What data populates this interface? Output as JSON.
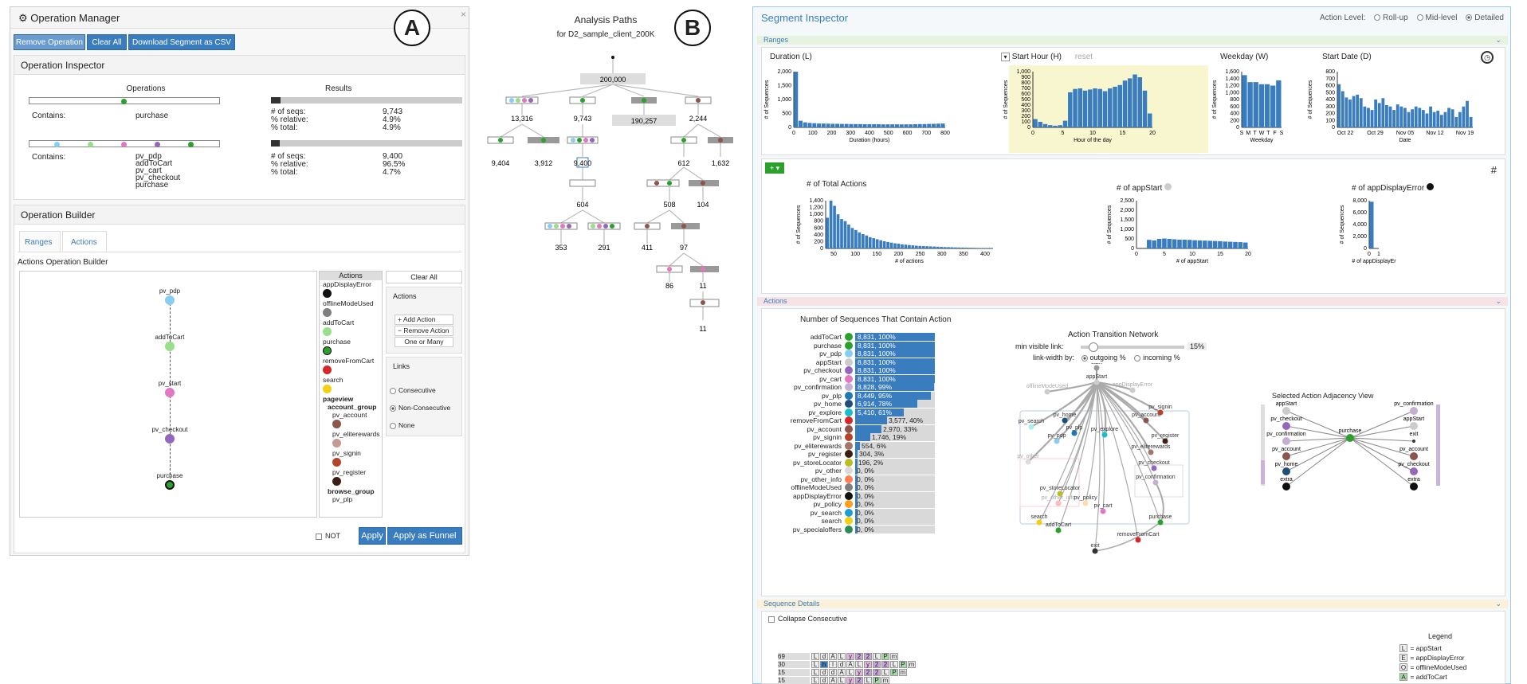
{
  "labels": {
    "a": "A",
    "b": "B",
    "c": "C"
  },
  "op_manager": {
    "title": "Operation Manager",
    "close": "×",
    "buttons": [
      "Remove Operation",
      "Clear All",
      "Download Segment as CSV"
    ],
    "inspector": {
      "title": "Operation Inspector",
      "col_operations": "Operations",
      "col_results": "Results",
      "op1": {
        "contains_label": "Contains:",
        "actions": "purchase",
        "stats_labels": [
          "# of seqs:",
          "% relative:",
          "% total:"
        ],
        "stats_values": [
          "9,743",
          "4.9%",
          "4.9%"
        ],
        "progress": 0.049
      },
      "op2": {
        "contains_label": "Contains:",
        "actions": [
          "pv_pdp",
          "addToCart",
          "pv_cart",
          "pv_checkout",
          "purchase"
        ],
        "stats_labels": [
          "# of seqs:",
          "% relative:",
          "% total:"
        ],
        "stats_values": [
          "9,400",
          "96.5%",
          "4.7%"
        ],
        "progress": 0.047
      }
    },
    "builder": {
      "title": "Operation Builder",
      "tabs": [
        "Ranges",
        "Actions"
      ],
      "subtitle": "Actions Operation Builder",
      "flow_nodes": [
        "pv_pdp",
        "addToCart",
        "pv_start",
        "pv_checkout",
        "purchase"
      ],
      "actions_header": "Actions",
      "actions_list": [
        "appDisplayError",
        "offlineModeUsed",
        "addToCart",
        "purchase",
        "removeFromCart",
        "search"
      ],
      "pageview_label": "pageview",
      "account_group": "account_group",
      "account_items": [
        "pv_account",
        "pv_eliterewards",
        "pv_signin",
        "pv_register"
      ],
      "browse_group": "browse_group",
      "browse_items": [
        "pv_plp"
      ],
      "clear_all": "Clear All",
      "actions_box": "Actions",
      "add_action": "Add Action",
      "remove_action": "Remove Action",
      "one_or_many": "One or Many",
      "links_title": "Links",
      "links": [
        "Consecutive",
        "Non-Consecutive",
        "None"
      ],
      "not_label": "NOT",
      "apply": "Apply",
      "apply_funnel": "Apply as Funnel"
    }
  },
  "analysis": {
    "title": "Analysis Paths",
    "subtitle": "for D2_sample_client_200K",
    "counts": [
      "200,000",
      "13,316",
      "9,743",
      "190,257",
      "2,244",
      "9,404",
      "3,912",
      "9,400",
      "612",
      "1,632",
      "604",
      "508",
      "104",
      "353",
      "291",
      "411",
      "97",
      "86",
      "11",
      "11"
    ]
  },
  "segment": {
    "title": "Segment Inspector",
    "action_level_label": "Action Level:",
    "levels": [
      "Roll-up",
      "Mid-level",
      "Detailed"
    ],
    "sections": {
      "ranges": "Ranges",
      "actions": "Actions",
      "details": "Sequence Details"
    },
    "ranges": {
      "duration": {
        "title": "Duration (L)",
        "xlabel": "Duration (hours)",
        "ylabel": "# of Sequences",
        "yticks": [
          "2,000",
          "1,500",
          "1,000",
          "500",
          "0"
        ],
        "xticks": [
          "0",
          "100",
          "200",
          "300",
          "400",
          "500",
          "600",
          "700",
          "800"
        ]
      },
      "hour": {
        "title": "Start Hour (H)",
        "reset": "reset",
        "xlabel": "Hour of the day",
        "ylabel": "# of Sequences",
        "yticks": [
          "1,000",
          "900",
          "800",
          "700",
          "600",
          "500",
          "400",
          "300",
          "200",
          "100",
          "0"
        ],
        "xticks": [
          "0",
          "5",
          "10",
          "15",
          "20"
        ]
      },
      "weekday": {
        "title": "Weekday (W)",
        "xlabel": "Weekday",
        "ylabel": "# of Sequences",
        "yticks": [
          "1,600",
          "1,400",
          "1,200",
          "1,000",
          "800",
          "600",
          "400",
          "200",
          "0"
        ],
        "xticks": "SMTWTFS"
      },
      "startdate": {
        "title": "Start Date (D)",
        "xlabel": "Date",
        "ylabel": "# of Sequences",
        "yticks": [
          "800",
          "700",
          "600",
          "500",
          "400",
          "300",
          "200",
          "100",
          "0"
        ],
        "xticks": [
          "Oct 22",
          "Oct 29",
          "Nov 05",
          "Nov 12",
          "Nov 19"
        ]
      }
    },
    "counts": {
      "total": {
        "title": "# of Total Actions",
        "xlabel": "# of actions",
        "ylabel": "# of Sequences",
        "yticks": [
          "1,400",
          "1,200",
          "1,000",
          "800",
          "600",
          "400",
          "200",
          "0"
        ],
        "xticks": [
          "50",
          "100",
          "150",
          "200",
          "250",
          "300",
          "350",
          "400"
        ]
      },
      "appstart": {
        "title": "# of appStart",
        "xlabel": "# of appStart",
        "ylabel": "# of Sequences",
        "yticks": [
          "2,500",
          "2,000",
          "1,500",
          "1,000",
          "500",
          "0"
        ],
        "xticks": [
          "0",
          "5",
          "10",
          "15",
          "20"
        ]
      },
      "apperror": {
        "title": "# of appDisplayError",
        "xlabel": "# of appDisplayEr",
        "ylabel": "# of Sequences",
        "yticks": [
          "8,000",
          "6,000",
          "4,000",
          "2,000",
          "0"
        ],
        "xticks": [
          "0",
          "1"
        ]
      },
      "add": "+ ▾",
      "hash": "#"
    },
    "actions_chart": {
      "title": "Number of Sequences That Contain Action",
      "rows": [
        {
          "name": "addToCart",
          "color": "#2ca02c",
          "label": "8,831, 100%",
          "frac": 1.0
        },
        {
          "name": "purchase",
          "color": "#2ca02c",
          "label": "8,831, 100%",
          "frac": 1.0
        },
        {
          "name": "pv_pdp",
          "color": "#87cef0",
          "label": "8,831, 100%",
          "frac": 1.0
        },
        {
          "name": "appStart",
          "color": "#cccccc",
          "label": "8,831, 100%",
          "frac": 1.0
        },
        {
          "name": "pv_checkout",
          "color": "#9467bd",
          "label": "8,831, 100%",
          "frac": 1.0
        },
        {
          "name": "pv_cart",
          "color": "#e377c2",
          "label": "8,831, 100%",
          "frac": 1.0
        },
        {
          "name": "pv_confirmation",
          "color": "#c5b0d5",
          "label": "8,828, 99%",
          "frac": 0.99
        },
        {
          "name": "pv_plp",
          "color": "#1f77b4",
          "label": "8,449, 95%",
          "frac": 0.95
        },
        {
          "name": "pv_home",
          "color": "#1f4e79",
          "label": "6,914, 78%",
          "frac": 0.78
        },
        {
          "name": "pv_explore",
          "color": "#17becf",
          "label": "5,410, 61%",
          "frac": 0.61
        },
        {
          "name": "removeFromCart",
          "color": "#d62728",
          "label": "3,577, 40%",
          "frac": 0.4
        },
        {
          "name": "pv_account",
          "color": "#8c564b",
          "label": "2,970, 33%",
          "frac": 0.33
        },
        {
          "name": "pv_signin",
          "color": "#b5452a",
          "label": "1,746, 19%",
          "frac": 0.19
        },
        {
          "name": "pv_eliterewards",
          "color": "#a0786a",
          "label": "554, 6%",
          "frac": 0.06
        },
        {
          "name": "pv_register",
          "color": "#3b1f14",
          "label": "304, 3%",
          "frac": 0.03
        },
        {
          "name": "pv_storeLocator",
          "color": "#bcbd22",
          "label": "196, 2%",
          "frac": 0.02
        },
        {
          "name": "pv_other",
          "color": "#d9d9d9",
          "label": "0, 0%",
          "frac": 0
        },
        {
          "name": "pv_other_info",
          "color": "#ff7f50",
          "label": "0, 0%",
          "frac": 0
        },
        {
          "name": "offlineModeUsed",
          "color": "#7f7f7f",
          "label": "0, 0%",
          "frac": 0
        },
        {
          "name": "appDisplayError",
          "color": "#111111",
          "label": "0, 0%",
          "frac": 0
        },
        {
          "name": "pv_policy",
          "color": "#ff9f1c",
          "label": "0, 0%",
          "frac": 0
        },
        {
          "name": "pv_search",
          "color": "#1f9ed1",
          "label": "0, 0%",
          "frac": 0
        },
        {
          "name": "search",
          "color": "#f2d013",
          "label": "0, 0%",
          "frac": 0
        },
        {
          "name": "pv_specialoffers",
          "color": "#2e8b57",
          "label": "0, 0%",
          "frac": 0
        }
      ]
    },
    "network": {
      "title": "Action Transition Network",
      "min_link": "min visible link:",
      "min_value": "15%",
      "width_by": "link-width by:",
      "outgoing": "outgoing %",
      "incoming": "incoming %",
      "nodes": [
        "start",
        "appStart",
        "offlineModeUsed",
        "appDisplayError",
        "pv_search",
        "pv_home",
        "pv_account",
        "pv_signin",
        "pv_pdp",
        "pv_plp",
        "pv_explore",
        "pv_register",
        "pv_eliterewards",
        "pv_other",
        "pv_checkout",
        "pv_storeLocator",
        "pv_confirmation",
        "pv_other_info",
        "pv_policy",
        "pv_cart",
        "search",
        "purchase",
        "addToCart",
        "removeFromCart",
        "exit"
      ]
    },
    "adjacency": {
      "title": "Selected Action Adjacency View",
      "left": [
        "appStart",
        "pv_checkout",
        "pv_confirmation",
        "pv_account",
        "pv_home",
        "extra"
      ],
      "center": "purchase",
      "right": [
        "pv_confirmation",
        "appStart",
        "exit",
        "pv_account",
        "pv_checkout",
        "extra"
      ]
    },
    "details": {
      "collapse": "Collapse Consecutive",
      "rows": [
        {
          "count": "69",
          "seq": "LdALy22LPm"
        },
        {
          "count": "30",
          "seq": "LhldALy22LPm"
        },
        {
          "count": "15",
          "seq": "LddALy22LPm"
        },
        {
          "count": "15",
          "seq": "LdALy2LPm"
        }
      ],
      "legend_title": "Legend",
      "legend": [
        {
          "key": "L",
          "text": "= appStart"
        },
        {
          "key": "E",
          "text": "= appDisplayError"
        },
        {
          "key": "O",
          "text": "= offlineModeUsed"
        },
        {
          "key": "A",
          "text": "= addToCart"
        }
      ]
    },
    "chart_data": [
      {
        "type": "bar",
        "title": "Duration (L)",
        "xlabel": "Duration (hours)",
        "ylabel": "# of Sequences",
        "ylim": [
          0,
          2000
        ],
        "x": [
          0,
          25,
          50,
          75,
          100,
          125,
          150,
          175,
          200,
          225,
          250,
          275,
          300,
          325,
          350,
          375,
          400,
          425,
          450,
          475,
          500,
          525,
          550,
          575,
          600,
          625,
          650,
          675,
          700,
          725,
          750,
          775,
          800
        ],
        "values": [
          2000,
          240,
          180,
          160,
          150,
          140,
          140,
          135,
          130,
          130,
          125,
          125,
          120,
          120,
          120,
          115,
          115,
          115,
          115,
          110,
          110,
          110,
          110,
          110,
          110,
          110,
          115,
          120,
          120,
          125,
          130,
          135,
          140
        ]
      },
      {
        "type": "bar",
        "title": "Start Hour (H)",
        "xlabel": "Hour of the day",
        "ylabel": "# of Sequences",
        "ylim": [
          0,
          1000
        ],
        "x": [
          0,
          1,
          2,
          3,
          4,
          5,
          6,
          7,
          8,
          9,
          10,
          11,
          12,
          13,
          14,
          15,
          16,
          17,
          18,
          19,
          20,
          21,
          22,
          23
        ],
        "values": [
          150,
          100,
          60,
          40,
          30,
          40,
          120,
          630,
          690,
          700,
          660,
          680,
          700,
          690,
          650,
          700,
          730,
          760,
          840,
          880,
          950,
          900,
          660,
          250
        ]
      },
      {
        "type": "bar",
        "title": "Weekday (W)",
        "xlabel": "Weekday",
        "ylabel": "# of Sequences",
        "ylim": [
          0,
          1600
        ],
        "categories": [
          "S",
          "M",
          "T",
          "W",
          "T",
          "F",
          "S"
        ],
        "values": [
          1500,
          1300,
          1300,
          1240,
          1240,
          1200,
          1350
        ]
      },
      {
        "type": "bar",
        "title": "Start Date (D)",
        "xlabel": "Date",
        "ylabel": "# of Sequences",
        "ylim": [
          0,
          800
        ],
        "values": [
          620,
          520,
          430,
          400,
          450,
          470,
          420,
          300,
          280,
          250,
          400,
          350,
          420,
          320,
          300,
          250,
          330,
          300,
          280,
          220,
          260,
          300,
          280,
          250,
          200,
          300,
          220,
          240,
          180,
          220,
          280,
          260,
          150,
          220,
          300,
          380,
          150
        ]
      },
      {
        "type": "bar",
        "title": "# of Total Actions",
        "xlabel": "# of actions",
        "ylabel": "# of Sequences",
        "ylim": [
          0,
          1400
        ],
        "values": [
          900,
          1400,
          1250,
          1000,
          860,
          800,
          700,
          600,
          540,
          470,
          420,
          380,
          330,
          300,
          270,
          240,
          210,
          190,
          170,
          150,
          140,
          120,
          110,
          100,
          90,
          80,
          75,
          70,
          65,
          60,
          55,
          50,
          45,
          40,
          38,
          35,
          30,
          28,
          25,
          22,
          20,
          18,
          15,
          12,
          10,
          10,
          8
        ]
      },
      {
        "type": "bar",
        "title": "# of appStart",
        "xlabel": "# of appStart",
        "ylabel": "# of Sequences",
        "ylim": [
          0,
          2500
        ],
        "values": [
          0,
          0,
          450,
          420,
          500,
          520,
          500,
          480,
          460,
          460,
          450,
          430,
          420,
          410,
          400,
          390,
          380,
          360,
          350,
          340,
          330,
          310
        ]
      },
      {
        "type": "bar",
        "title": "# of appDisplayError",
        "xlabel": "# of appDisplayEr",
        "ylabel": "# of Sequences",
        "ylim": [
          0,
          9000
        ],
        "categories": [
          "0",
          "1"
        ],
        "values": [
          8800,
          0
        ]
      }
    ]
  }
}
